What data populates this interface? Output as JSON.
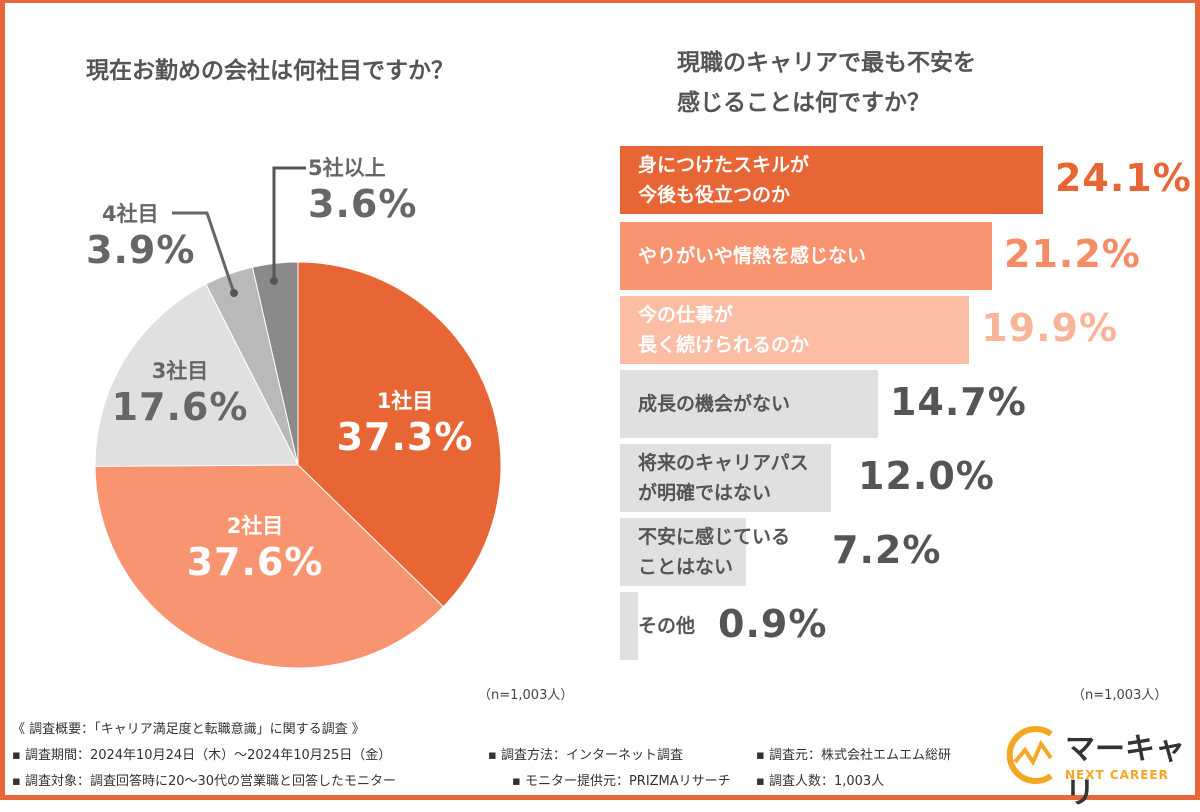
{
  "left": {
    "title": "現在お勤めの会社は何社目ですか？",
    "n_note": "（n=1,003人）"
  },
  "right": {
    "title_line1": "現職のキャリアで最も不安を",
    "title_line2": "感じることは何ですか？",
    "n_note": "（n=1,003人）"
  },
  "chart_data": [
    {
      "type": "pie",
      "start": "top",
      "direction": "clockwise",
      "categories": [
        "1社目",
        "2社目",
        "3社目",
        "4社目",
        "5社以上"
      ],
      "values": [
        37.3,
        37.6,
        17.6,
        3.9,
        3.6
      ],
      "labels": [
        "37.3%",
        "37.6%",
        "17.6%",
        "3.9%",
        "3.6%"
      ],
      "colors": [
        "#e86535",
        "#f89470",
        "#e0e0e0",
        "#b9b9b9",
        "#8a8a8a"
      ]
    },
    {
      "type": "bar",
      "orientation": "horizontal",
      "categories": [
        [
          "身につけたスキルが",
          "今後も役立つのか"
        ],
        [
          "やりがいや情熱を感じない"
        ],
        [
          "今の仕事が",
          "長く続けられるのか"
        ],
        [
          "成長の機会がない"
        ],
        [
          "将来のキャリアパス",
          "が明確ではない"
        ],
        [
          "不安に感じている",
          "ことはない"
        ],
        [
          "その他"
        ]
      ],
      "values": [
        24.1,
        21.2,
        19.9,
        14.7,
        12.0,
        7.2,
        0.9
      ],
      "labels": [
        "24.1%",
        "21.2%",
        "19.9%",
        "14.7%",
        "12.0%",
        "7.2%",
        "0.9%"
      ],
      "colors": [
        "#e86535",
        "#f89470",
        "#fbbea5",
        "#e0e0e0",
        "#e0e0e0",
        "#e0e0e0",
        "#e0e0e0"
      ],
      "value_colors": [
        "#e86535",
        "#f58c64",
        "#f9b59a",
        "#555555",
        "#555555",
        "#555555",
        "#555555"
      ],
      "text_colors": [
        "#ffffff",
        "#ffffff",
        "#ffffff",
        "#555555",
        "#555555",
        "#555555",
        "#555555"
      ]
    }
  ],
  "footer": {
    "heading": "《 調査概要：「キャリア満足度と転職意識」に関する調査 》",
    "row1": [
      "▪ 調査期間：2024年10月24日（木）〜2024年10月25日（金）",
      "▪ 調査方法：インターネット調査",
      "▪ 調査元：株式会社エムエム総研"
    ],
    "row2": [
      "▪ 調査対象：調査回答時に20〜30代の営業職と回答したモニター",
      "▪ モニター提供元：PRIZMAリサーチ",
      "▪ 調査人数：1,003人"
    ]
  },
  "logo": {
    "name": "マーキャリ",
    "tagline": "NEXT CAREER",
    "color": "#f5a623"
  }
}
